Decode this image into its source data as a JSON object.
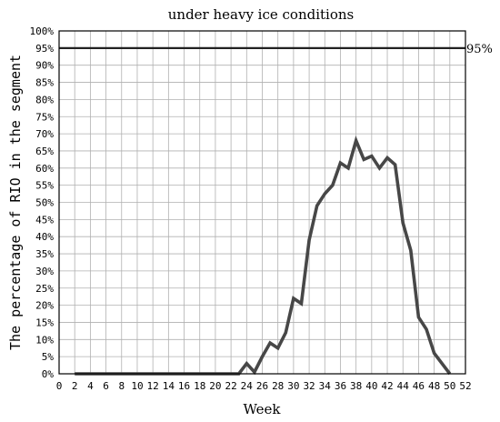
{
  "chart_data": {
    "type": "line",
    "title": "under heavy ice conditions",
    "xlabel": "Week",
    "ylabel": "The percentage of RIO in the segment",
    "xlim": [
      0,
      52
    ],
    "ylim": [
      0,
      100
    ],
    "x_ticks": [
      0,
      2,
      4,
      6,
      8,
      10,
      12,
      14,
      16,
      18,
      20,
      22,
      24,
      26,
      28,
      30,
      32,
      34,
      36,
      38,
      40,
      42,
      44,
      46,
      48,
      50,
      52
    ],
    "y_ticks": [
      "0%",
      "5%",
      "10%",
      "15%",
      "20%",
      "25%",
      "30%",
      "35%",
      "40%",
      "45%",
      "50%",
      "55%",
      "60%",
      "65%",
      "70%",
      "75%",
      "80%",
      "85%",
      "90%",
      "95%",
      "100%"
    ],
    "grid": true,
    "reference_line": {
      "y": 95,
      "label": "95%"
    },
    "series": [
      {
        "x": [
          2,
          3,
          4,
          5,
          6,
          7,
          8,
          9,
          10,
          11,
          12,
          13,
          14,
          15,
          16,
          17,
          18,
          19,
          20,
          21,
          22,
          23,
          24,
          25,
          26,
          27,
          28,
          29,
          30,
          31,
          32,
          33,
          34,
          35,
          36,
          37,
          38,
          39,
          40,
          41,
          42,
          43,
          44,
          45,
          46,
          47,
          48,
          49,
          50
        ],
        "values": [
          0,
          0,
          0,
          0,
          0,
          0,
          0,
          0,
          0,
          0,
          0,
          0,
          0,
          0,
          0,
          0,
          0,
          0,
          0,
          0,
          0,
          0,
          3,
          0.5,
          5,
          9,
          7.5,
          12,
          22,
          20.5,
          39,
          49,
          52.5,
          55,
          61.5,
          60,
          68,
          62.5,
          63.5,
          60,
          63,
          61,
          44,
          36,
          16.5,
          13,
          6,
          3,
          0
        ]
      }
    ]
  }
}
